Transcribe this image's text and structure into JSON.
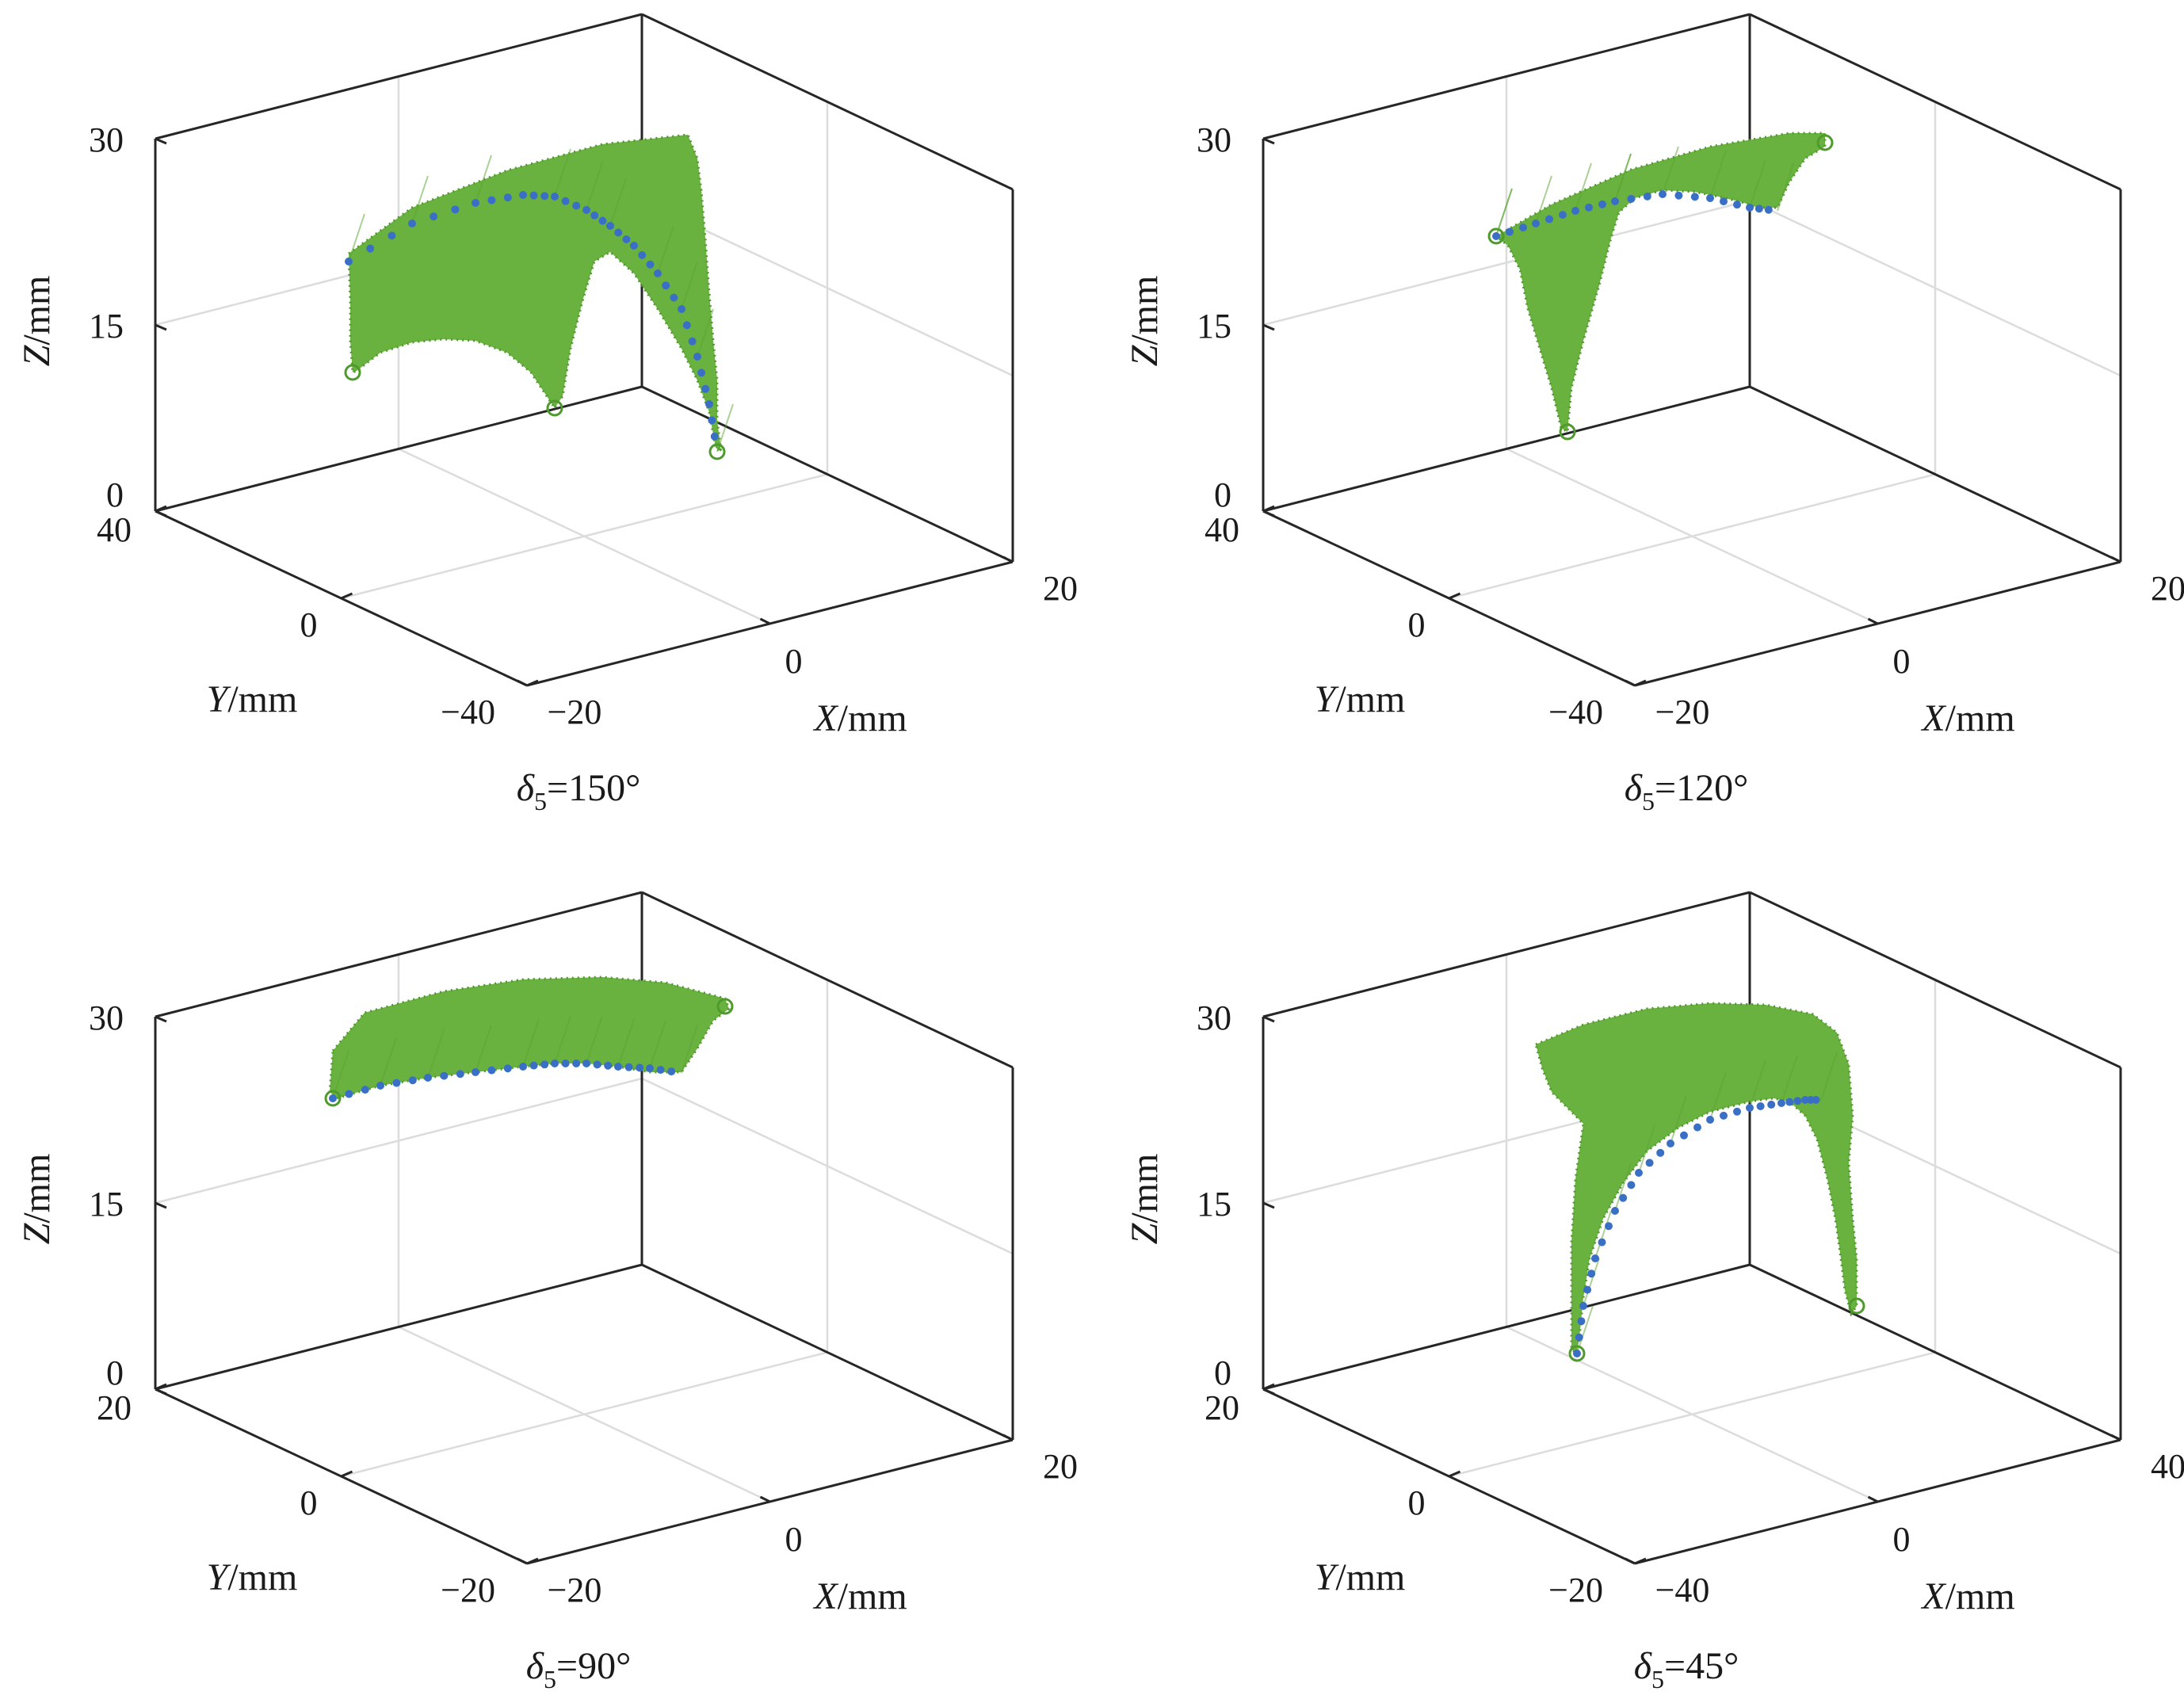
{
  "figure": {
    "panels": [
      "150°",
      "120°",
      "90°",
      "45°"
    ]
  },
  "chart_data": [
    {
      "type": "scatter",
      "panel": "δ5=150°",
      "caption_symbol": "δ",
      "caption_subscript": "5",
      "caption_value": "=150°",
      "xlabel_var": "X",
      "ylabel_var": "Y",
      "zlabel_var": "Z",
      "unit": "/mm",
      "xticks": [
        "−20",
        "0",
        "20"
      ],
      "yticks": [
        "40",
        "0",
        "−40"
      ],
      "zticks": [
        "0",
        "15",
        "30"
      ],
      "xlim": [
        -20,
        20
      ],
      "ylim": [
        -40,
        40
      ],
      "zlim": [
        0,
        30
      ],
      "grid": true,
      "series": [
        {
          "role": "workspace surface points",
          "color": "#6ab23f"
        },
        {
          "role": "boundary points",
          "color": "#3a6fc6"
        }
      ],
      "colors": {
        "surface": "#6ab23f",
        "boundary": "#3a6fc6"
      }
    },
    {
      "type": "scatter",
      "panel": "δ5=120°",
      "caption_symbol": "δ",
      "caption_subscript": "5",
      "caption_value": "=120°",
      "xlabel_var": "X",
      "ylabel_var": "Y",
      "zlabel_var": "Z",
      "unit": "/mm",
      "xticks": [
        "−20",
        "0",
        "20"
      ],
      "yticks": [
        "40",
        "0",
        "−40"
      ],
      "zticks": [
        "0",
        "15",
        "30"
      ],
      "xlim": [
        -20,
        20
      ],
      "ylim": [
        -40,
        40
      ],
      "zlim": [
        0,
        30
      ],
      "grid": true,
      "series": [
        {
          "role": "workspace surface points",
          "color": "#6ab23f"
        },
        {
          "role": "boundary points",
          "color": "#3a6fc6"
        }
      ],
      "colors": {
        "surface": "#6ab23f",
        "boundary": "#3a6fc6"
      }
    },
    {
      "type": "scatter",
      "panel": "δ5=90°",
      "caption_symbol": "δ",
      "caption_subscript": "5",
      "caption_value": "=90°",
      "xlabel_var": "X",
      "ylabel_var": "Y",
      "zlabel_var": "Z",
      "unit": "/mm",
      "xticks": [
        "−20",
        "0",
        "20"
      ],
      "yticks": [
        "20",
        "0",
        "−20"
      ],
      "zticks": [
        "0",
        "15",
        "30"
      ],
      "xlim": [
        -20,
        20
      ],
      "ylim": [
        -20,
        20
      ],
      "zlim": [
        0,
        30
      ],
      "grid": true,
      "series": [
        {
          "role": "workspace surface points",
          "color": "#6ab23f"
        },
        {
          "role": "boundary points",
          "color": "#3a6fc6"
        }
      ],
      "colors": {
        "surface": "#6ab23f",
        "boundary": "#3a6fc6"
      }
    },
    {
      "type": "scatter",
      "panel": "δ5=45°",
      "caption_symbol": "δ",
      "caption_subscript": "5",
      "caption_value": "=45°",
      "xlabel_var": "X",
      "ylabel_var": "Y",
      "zlabel_var": "Z",
      "unit": "/mm",
      "xticks": [
        "−40",
        "0",
        "40"
      ],
      "yticks": [
        "20",
        "0",
        "−20"
      ],
      "zticks": [
        "0",
        "15",
        "30"
      ],
      "xlim": [
        -40,
        40
      ],
      "ylim": [
        -20,
        20
      ],
      "zlim": [
        0,
        30
      ],
      "grid": true,
      "series": [
        {
          "role": "workspace surface points",
          "color": "#6ab23f"
        },
        {
          "role": "boundary points",
          "color": "#3a6fc6"
        }
      ],
      "colors": {
        "surface": "#6ab23f",
        "boundary": "#3a6fc6"
      }
    }
  ]
}
